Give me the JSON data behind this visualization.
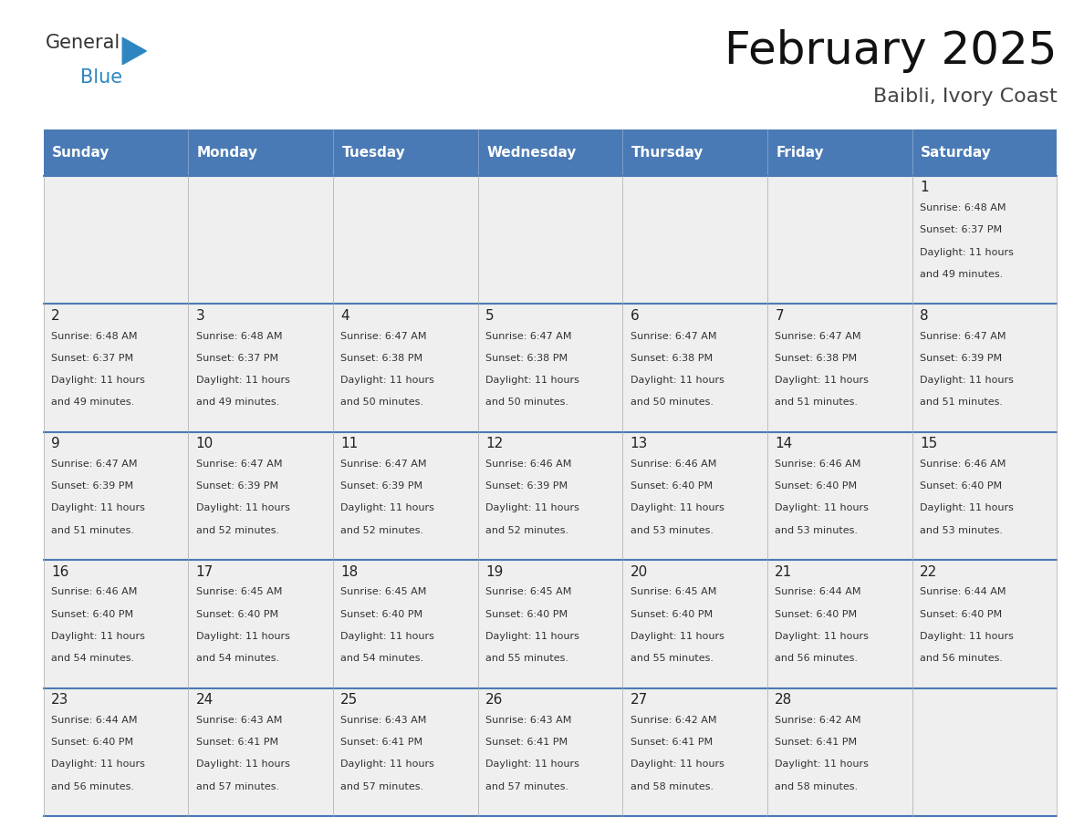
{
  "title": "February 2025",
  "subtitle": "Baibli, Ivory Coast",
  "header_color": "#4a7ab5",
  "header_text_color": "#FFFFFF",
  "bg_color": "#FFFFFF",
  "cell_bg": "#EFEFEF",
  "separator_color": "#4a7ab5",
  "day_headers": [
    "Sunday",
    "Monday",
    "Tuesday",
    "Wednesday",
    "Thursday",
    "Friday",
    "Saturday"
  ],
  "days": [
    {
      "day": 1,
      "col": 6,
      "row": 0,
      "sunrise": "6:48 AM",
      "sunset": "6:37 PM",
      "daylight": "11 hours and 49 minutes."
    },
    {
      "day": 2,
      "col": 0,
      "row": 1,
      "sunrise": "6:48 AM",
      "sunset": "6:37 PM",
      "daylight": "11 hours and 49 minutes."
    },
    {
      "day": 3,
      "col": 1,
      "row": 1,
      "sunrise": "6:48 AM",
      "sunset": "6:37 PM",
      "daylight": "11 hours and 49 minutes."
    },
    {
      "day": 4,
      "col": 2,
      "row": 1,
      "sunrise": "6:47 AM",
      "sunset": "6:38 PM",
      "daylight": "11 hours and 50 minutes."
    },
    {
      "day": 5,
      "col": 3,
      "row": 1,
      "sunrise": "6:47 AM",
      "sunset": "6:38 PM",
      "daylight": "11 hours and 50 minutes."
    },
    {
      "day": 6,
      "col": 4,
      "row": 1,
      "sunrise": "6:47 AM",
      "sunset": "6:38 PM",
      "daylight": "11 hours and 50 minutes."
    },
    {
      "day": 7,
      "col": 5,
      "row": 1,
      "sunrise": "6:47 AM",
      "sunset": "6:38 PM",
      "daylight": "11 hours and 51 minutes."
    },
    {
      "day": 8,
      "col": 6,
      "row": 1,
      "sunrise": "6:47 AM",
      "sunset": "6:39 PM",
      "daylight": "11 hours and 51 minutes."
    },
    {
      "day": 9,
      "col": 0,
      "row": 2,
      "sunrise": "6:47 AM",
      "sunset": "6:39 PM",
      "daylight": "11 hours and 51 minutes."
    },
    {
      "day": 10,
      "col": 1,
      "row": 2,
      "sunrise": "6:47 AM",
      "sunset": "6:39 PM",
      "daylight": "11 hours and 52 minutes."
    },
    {
      "day": 11,
      "col": 2,
      "row": 2,
      "sunrise": "6:47 AM",
      "sunset": "6:39 PM",
      "daylight": "11 hours and 52 minutes."
    },
    {
      "day": 12,
      "col": 3,
      "row": 2,
      "sunrise": "6:46 AM",
      "sunset": "6:39 PM",
      "daylight": "11 hours and 52 minutes."
    },
    {
      "day": 13,
      "col": 4,
      "row": 2,
      "sunrise": "6:46 AM",
      "sunset": "6:40 PM",
      "daylight": "11 hours and 53 minutes."
    },
    {
      "day": 14,
      "col": 5,
      "row": 2,
      "sunrise": "6:46 AM",
      "sunset": "6:40 PM",
      "daylight": "11 hours and 53 minutes."
    },
    {
      "day": 15,
      "col": 6,
      "row": 2,
      "sunrise": "6:46 AM",
      "sunset": "6:40 PM",
      "daylight": "11 hours and 53 minutes."
    },
    {
      "day": 16,
      "col": 0,
      "row": 3,
      "sunrise": "6:46 AM",
      "sunset": "6:40 PM",
      "daylight": "11 hours and 54 minutes."
    },
    {
      "day": 17,
      "col": 1,
      "row": 3,
      "sunrise": "6:45 AM",
      "sunset": "6:40 PM",
      "daylight": "11 hours and 54 minutes."
    },
    {
      "day": 18,
      "col": 2,
      "row": 3,
      "sunrise": "6:45 AM",
      "sunset": "6:40 PM",
      "daylight": "11 hours and 54 minutes."
    },
    {
      "day": 19,
      "col": 3,
      "row": 3,
      "sunrise": "6:45 AM",
      "sunset": "6:40 PM",
      "daylight": "11 hours and 55 minutes."
    },
    {
      "day": 20,
      "col": 4,
      "row": 3,
      "sunrise": "6:45 AM",
      "sunset": "6:40 PM",
      "daylight": "11 hours and 55 minutes."
    },
    {
      "day": 21,
      "col": 5,
      "row": 3,
      "sunrise": "6:44 AM",
      "sunset": "6:40 PM",
      "daylight": "11 hours and 56 minutes."
    },
    {
      "day": 22,
      "col": 6,
      "row": 3,
      "sunrise": "6:44 AM",
      "sunset": "6:40 PM",
      "daylight": "11 hours and 56 minutes."
    },
    {
      "day": 23,
      "col": 0,
      "row": 4,
      "sunrise": "6:44 AM",
      "sunset": "6:40 PM",
      "daylight": "11 hours and 56 minutes."
    },
    {
      "day": 24,
      "col": 1,
      "row": 4,
      "sunrise": "6:43 AM",
      "sunset": "6:41 PM",
      "daylight": "11 hours and 57 minutes."
    },
    {
      "day": 25,
      "col": 2,
      "row": 4,
      "sunrise": "6:43 AM",
      "sunset": "6:41 PM",
      "daylight": "11 hours and 57 minutes."
    },
    {
      "day": 26,
      "col": 3,
      "row": 4,
      "sunrise": "6:43 AM",
      "sunset": "6:41 PM",
      "daylight": "11 hours and 57 minutes."
    },
    {
      "day": 27,
      "col": 4,
      "row": 4,
      "sunrise": "6:42 AM",
      "sunset": "6:41 PM",
      "daylight": "11 hours and 58 minutes."
    },
    {
      "day": 28,
      "col": 5,
      "row": 4,
      "sunrise": "6:42 AM",
      "sunset": "6:41 PM",
      "daylight": "11 hours and 58 minutes."
    }
  ],
  "logo_text_general": "General",
  "logo_text_blue": "Blue",
  "logo_color_general": "#333333",
  "logo_color_blue": "#2E86C1",
  "logo_triangle_color": "#2E86C1"
}
